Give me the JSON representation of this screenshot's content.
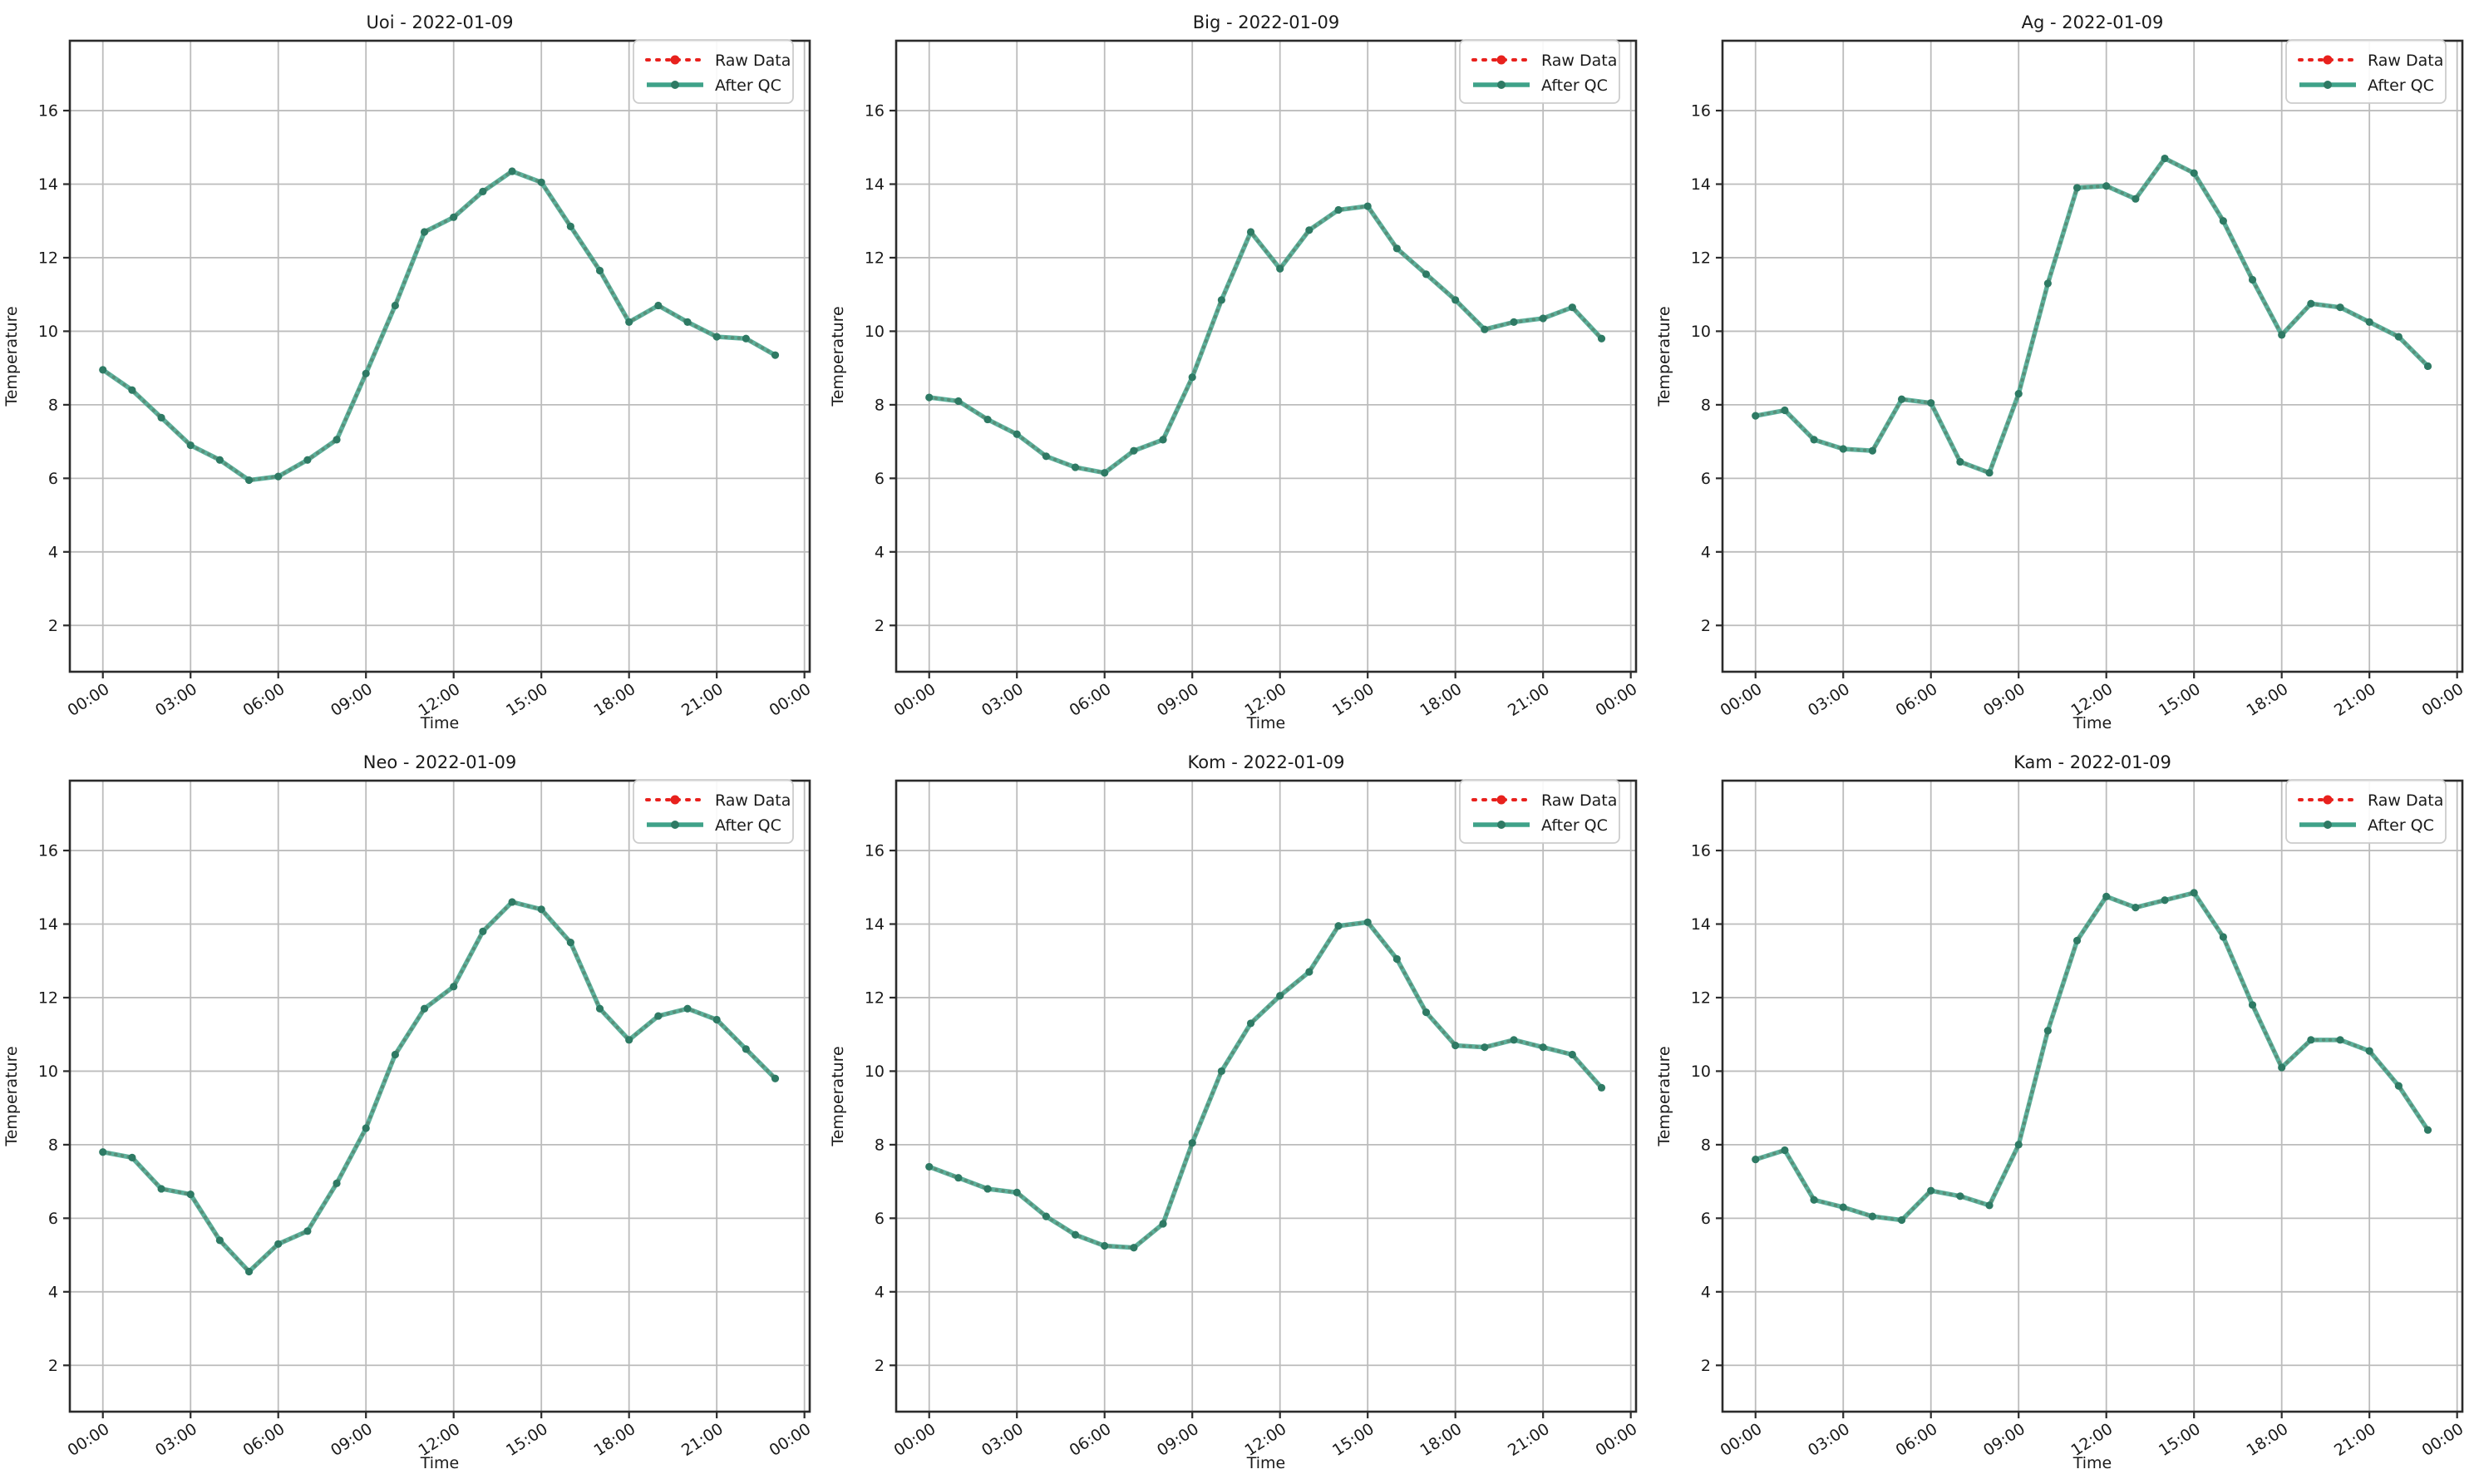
{
  "page": {
    "background": "#ffffff",
    "grid_layout": "2x3"
  },
  "colors": {
    "raw_red": "#e8211d",
    "qc_teal": "#3fa289",
    "qc_marker": "#2e7a64",
    "gridline": "#bcbcbc",
    "spine": "#2b2b2b",
    "text": "#1a1a1a",
    "legend_border": "#cccccc",
    "legend_bg": "#ffffff"
  },
  "legend": {
    "position": "top-right",
    "items": [
      {
        "label": "Raw Data",
        "style": "dotted",
        "color": "#e8211d"
      },
      {
        "label": "After QC",
        "style": "solid",
        "color": "#3fa289"
      }
    ]
  },
  "axes": {
    "xlabel": "Time",
    "ylabel": "Temperature",
    "x_tick_hours": [
      0,
      3,
      6,
      9,
      12,
      15,
      18,
      21,
      24
    ],
    "x_tick_labels": [
      "00:00",
      "03:00",
      "06:00",
      "09:00",
      "12:00",
      "15:00",
      "18:00",
      "21:00",
      "00:00"
    ],
    "y_ticks": [
      2,
      4,
      6,
      8,
      10,
      12,
      14,
      16
    ],
    "xlim": [
      -1.13,
      24.18
    ],
    "ylim": [
      0.74,
      17.9
    ],
    "grid": true
  },
  "chart_data": [
    {
      "type": "line",
      "station": "Uoi",
      "date": "2022-01-09",
      "title": "Uoi - 2022-01-09",
      "xlabel": "Time",
      "ylabel": "Temperature",
      "x_hours": [
        0,
        1,
        2,
        3,
        4,
        5,
        6,
        7,
        8,
        9,
        10,
        11,
        12,
        13,
        14,
        15,
        16,
        17,
        18,
        19,
        20,
        21,
        22,
        23
      ],
      "series": [
        {
          "name": "Raw Data",
          "values": [
            8.95,
            8.4,
            7.65,
            6.9,
            6.5,
            5.95,
            6.05,
            6.5,
            7.05,
            8.85,
            10.7,
            12.7,
            13.1,
            13.8,
            14.35,
            14.05,
            12.85,
            11.65,
            10.25,
            10.7,
            10.25,
            9.85,
            9.8,
            9.35
          ]
        },
        {
          "name": "After QC",
          "values": [
            8.95,
            8.4,
            7.65,
            6.9,
            6.5,
            5.95,
            6.05,
            6.5,
            7.05,
            8.85,
            10.7,
            12.7,
            13.1,
            13.8,
            14.35,
            14.05,
            12.85,
            11.65,
            10.25,
            10.7,
            10.25,
            9.85,
            9.8,
            9.35
          ]
        }
      ]
    },
    {
      "type": "line",
      "station": "Big",
      "date": "2022-01-09",
      "title": "Big - 2022-01-09",
      "xlabel": "Time",
      "ylabel": "Temperature",
      "x_hours": [
        0,
        1,
        2,
        3,
        4,
        5,
        6,
        7,
        8,
        9,
        10,
        11,
        12,
        13,
        14,
        15,
        16,
        17,
        18,
        19,
        20,
        21,
        22,
        23
      ],
      "series": [
        {
          "name": "Raw Data",
          "values": [
            8.2,
            8.1,
            7.6,
            7.2,
            6.6,
            6.3,
            6.15,
            6.75,
            7.05,
            8.75,
            10.85,
            12.7,
            11.7,
            12.75,
            13.3,
            13.4,
            12.25,
            11.55,
            10.85,
            10.05,
            10.25,
            10.35,
            10.65,
            9.8
          ]
        },
        {
          "name": "After QC",
          "values": [
            8.2,
            8.1,
            7.6,
            7.2,
            6.6,
            6.3,
            6.15,
            6.75,
            7.05,
            8.75,
            10.85,
            12.7,
            11.7,
            12.75,
            13.3,
            13.4,
            12.25,
            11.55,
            10.85,
            10.05,
            10.25,
            10.35,
            10.65,
            9.8
          ]
        }
      ]
    },
    {
      "type": "line",
      "station": "Ag",
      "date": "2022-01-09",
      "title": "Ag - 2022-01-09",
      "xlabel": "Time",
      "ylabel": "Temperature",
      "x_hours": [
        0,
        1,
        2,
        3,
        4,
        5,
        6,
        7,
        8,
        9,
        10,
        11,
        12,
        13,
        14,
        15,
        16,
        17,
        18,
        19,
        20,
        21,
        22,
        23
      ],
      "series": [
        {
          "name": "Raw Data",
          "values": [
            7.7,
            7.85,
            7.05,
            6.8,
            6.75,
            8.15,
            8.05,
            6.45,
            6.15,
            8.3,
            11.3,
            13.9,
            13.95,
            13.6,
            14.7,
            14.3,
            13.0,
            11.4,
            9.9,
            10.75,
            10.65,
            10.25,
            9.85,
            9.05
          ]
        },
        {
          "name": "After QC",
          "values": [
            7.7,
            7.85,
            7.05,
            6.8,
            6.75,
            8.15,
            8.05,
            6.45,
            6.15,
            8.3,
            11.3,
            13.9,
            13.95,
            13.6,
            14.7,
            14.3,
            13.0,
            11.4,
            9.9,
            10.75,
            10.65,
            10.25,
            9.85,
            9.05
          ]
        }
      ]
    },
    {
      "type": "line",
      "station": "Neo",
      "date": "2022-01-09",
      "title": "Neo - 2022-01-09",
      "xlabel": "Time",
      "ylabel": "Temperature",
      "x_hours": [
        0,
        1,
        2,
        3,
        4,
        5,
        6,
        7,
        8,
        9,
        10,
        11,
        12,
        13,
        14,
        15,
        16,
        17,
        18,
        19,
        20,
        21,
        22,
        23
      ],
      "series": [
        {
          "name": "Raw Data",
          "values": [
            7.8,
            7.65,
            6.8,
            6.65,
            5.4,
            4.55,
            5.3,
            5.65,
            6.95,
            8.45,
            10.45,
            11.7,
            12.3,
            13.8,
            14.6,
            14.4,
            13.5,
            11.7,
            10.85,
            11.5,
            11.7,
            11.4,
            10.6,
            9.8
          ]
        },
        {
          "name": "After QC",
          "values": [
            7.8,
            7.65,
            6.8,
            6.65,
            5.4,
            4.55,
            5.3,
            5.65,
            6.95,
            8.45,
            10.45,
            11.7,
            12.3,
            13.8,
            14.6,
            14.4,
            13.5,
            11.7,
            10.85,
            11.5,
            11.7,
            11.4,
            10.6,
            9.8
          ]
        }
      ]
    },
    {
      "type": "line",
      "station": "Kom",
      "date": "2022-01-09",
      "title": "Kom - 2022-01-09",
      "xlabel": "Time",
      "ylabel": "Temperature",
      "x_hours": [
        0,
        1,
        2,
        3,
        4,
        5,
        6,
        7,
        8,
        9,
        10,
        11,
        12,
        13,
        14,
        15,
        16,
        17,
        18,
        19,
        20,
        21,
        22,
        23
      ],
      "series": [
        {
          "name": "Raw Data",
          "values": [
            7.4,
            7.1,
            6.8,
            6.7,
            6.05,
            5.55,
            5.25,
            5.2,
            5.85,
            8.05,
            10.0,
            11.3,
            12.05,
            12.7,
            13.95,
            14.05,
            13.05,
            11.6,
            10.7,
            10.65,
            10.85,
            10.65,
            10.45,
            9.55
          ]
        },
        {
          "name": "After QC",
          "values": [
            7.4,
            7.1,
            6.8,
            6.7,
            6.05,
            5.55,
            5.25,
            5.2,
            5.85,
            8.05,
            10.0,
            11.3,
            12.05,
            12.7,
            13.95,
            14.05,
            13.05,
            11.6,
            10.7,
            10.65,
            10.85,
            10.65,
            10.45,
            9.55
          ]
        }
      ]
    },
    {
      "type": "line",
      "station": "Kam",
      "date": "2022-01-09",
      "title": "Kam - 2022-01-09",
      "xlabel": "Time",
      "ylabel": "Temperature",
      "x_hours": [
        0,
        1,
        2,
        3,
        4,
        5,
        6,
        7,
        8,
        9,
        10,
        11,
        12,
        13,
        14,
        15,
        16,
        17,
        18,
        19,
        20,
        21,
        22,
        23
      ],
      "series": [
        {
          "name": "Raw Data",
          "values": [
            7.6,
            7.85,
            6.5,
            6.3,
            6.05,
            5.95,
            6.75,
            6.6,
            6.35,
            8.0,
            11.1,
            13.55,
            14.75,
            14.45,
            14.65,
            14.85,
            13.65,
            11.8,
            10.1,
            10.85,
            10.85,
            10.55,
            9.6,
            8.4
          ]
        },
        {
          "name": "After QC",
          "values": [
            7.6,
            7.85,
            6.5,
            6.3,
            6.05,
            5.95,
            6.75,
            6.6,
            6.35,
            8.0,
            11.1,
            13.55,
            14.75,
            14.45,
            14.65,
            14.85,
            13.65,
            11.8,
            10.1,
            10.85,
            10.85,
            10.55,
            9.6,
            8.4
          ]
        }
      ]
    }
  ]
}
